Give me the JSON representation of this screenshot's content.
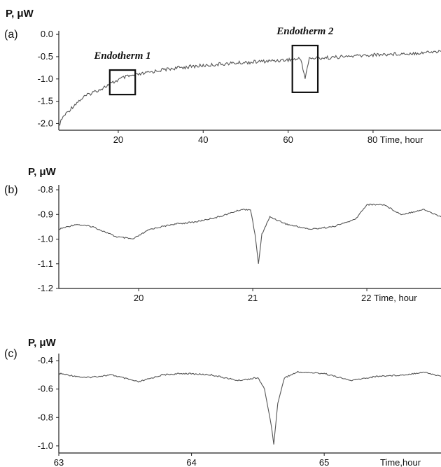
{
  "chart_data": [
    {
      "panel": "(a)",
      "type": "line",
      "ylabel": "P, μW",
      "xlabel": "Time, hour",
      "xticks": [
        20,
        40,
        60
      ],
      "xtick_last": "80 Time, hour",
      "yticks": [
        "0.0",
        "-0.5",
        "-1.0",
        "-1.5",
        "-2.0"
      ],
      "xlim": [
        6,
        96
      ],
      "ylim": [
        -2.15,
        0.08
      ],
      "series": [
        {
          "x": [
            6,
            7,
            8,
            10,
            12,
            14,
            16,
            18,
            20,
            21,
            22,
            25,
            30,
            35,
            40,
            45,
            50,
            55,
            60,
            63,
            64,
            65,
            70,
            75,
            80,
            85,
            90,
            96
          ],
          "values": [
            -2.05,
            -1.85,
            -1.75,
            -1.55,
            -1.4,
            -1.3,
            -1.22,
            -1.12,
            -1.02,
            -0.98,
            -0.95,
            -0.9,
            -0.8,
            -0.74,
            -0.7,
            -0.66,
            -0.63,
            -0.6,
            -0.57,
            -0.55,
            -0.98,
            -0.54,
            -0.52,
            -0.49,
            -0.46,
            -0.44,
            -0.42,
            -0.38
          ]
        }
      ],
      "annotations": [
        {
          "text": "Endotherm 1",
          "box_x": [
            18,
            24
          ],
          "box_y": [
            -0.8,
            -1.35
          ]
        },
        {
          "text": "Endotherm 2",
          "box_x": [
            61,
            67
          ],
          "box_y": [
            -0.25,
            -1.3
          ]
        }
      ]
    },
    {
      "panel": "(b)",
      "type": "line",
      "ylabel": "P, μW",
      "xlabel": "Time, hour",
      "xticks": [
        20,
        21
      ],
      "xtick_last": "22 Time, hour",
      "yticks": [
        "-0.8",
        "-0.9",
        "-1.0",
        "-1.1",
        "-1.2"
      ],
      "xlim": [
        19.3,
        22.65
      ],
      "ylim": [
        -1.2,
        -0.78
      ],
      "series": [
        {
          "x": [
            19.3,
            19.45,
            19.6,
            19.8,
            19.95,
            20.1,
            20.3,
            20.5,
            20.7,
            20.9,
            20.98,
            21.02,
            21.05,
            21.08,
            21.15,
            21.3,
            21.5,
            21.7,
            21.9,
            22.0,
            22.15,
            22.3,
            22.5,
            22.65
          ],
          "values": [
            -0.96,
            -0.94,
            -0.95,
            -0.99,
            -1.0,
            -0.96,
            -0.94,
            -0.93,
            -0.91,
            -0.88,
            -0.88,
            -0.98,
            -1.1,
            -0.98,
            -0.91,
            -0.94,
            -0.96,
            -0.95,
            -0.92,
            -0.86,
            -0.86,
            -0.9,
            -0.88,
            -0.91
          ]
        }
      ]
    },
    {
      "panel": "(c)",
      "type": "line",
      "ylabel": "P, μW",
      "xlabel": "Time,hour",
      "xticks": [
        63,
        64,
        65
      ],
      "xtick_last": "Time,hour",
      "yticks": [
        "-0.4",
        "-0.6",
        "-0.8",
        "-1.0"
      ],
      "xlim": [
        63,
        65.88
      ],
      "ylim": [
        -1.05,
        -0.35
      ],
      "series": [
        {
          "x": [
            63,
            63.2,
            63.4,
            63.6,
            63.78,
            63.95,
            64.15,
            64.35,
            64.5,
            64.55,
            64.6,
            64.62,
            64.65,
            64.7,
            64.8,
            65,
            65.2,
            65.4,
            65.6,
            65.75,
            65.88
          ],
          "values": [
            -0.49,
            -0.52,
            -0.5,
            -0.55,
            -0.5,
            -0.49,
            -0.5,
            -0.54,
            -0.52,
            -0.6,
            -0.85,
            -0.99,
            -0.7,
            -0.52,
            -0.48,
            -0.49,
            -0.54,
            -0.51,
            -0.5,
            -0.48,
            -0.51
          ]
        }
      ]
    }
  ]
}
